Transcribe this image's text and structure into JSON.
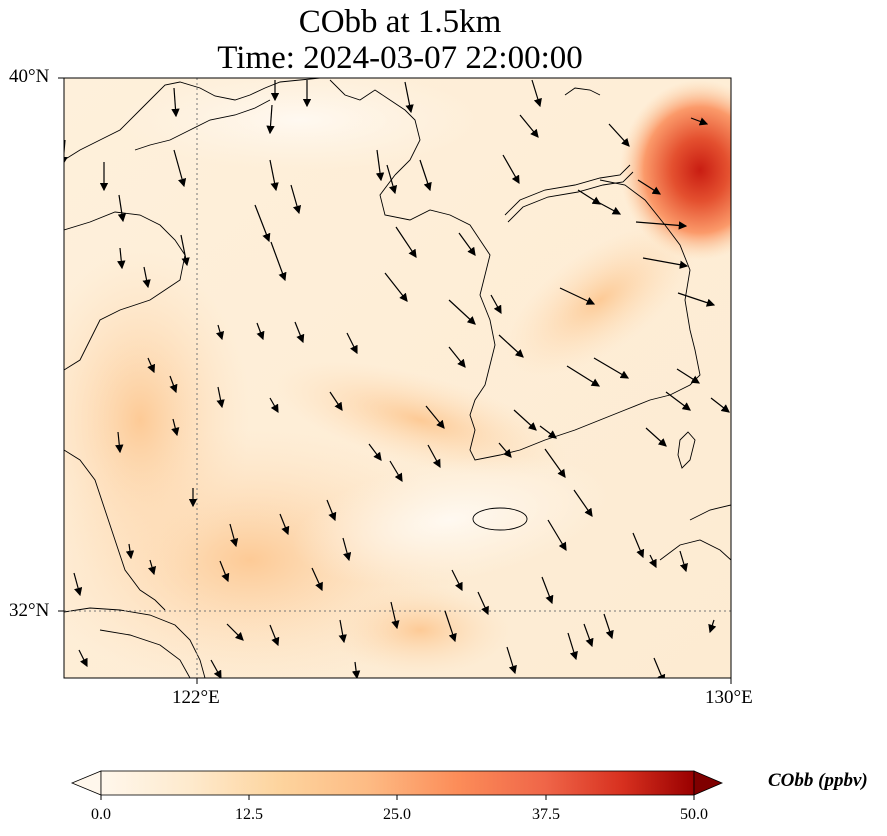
{
  "title": {
    "line1": "CObb at 1.5km",
    "line2": "Time: 2024-03-07 22:00:00"
  },
  "axes": {
    "lat_labels": [
      "40°N",
      "32°N"
    ],
    "lon_labels": [
      "122°E",
      "130°E"
    ],
    "lat_range": [
      31,
      40
    ],
    "lon_range": [
      120,
      130
    ],
    "gridlines": {
      "lat": 32,
      "lon": 122,
      "style": "dotted"
    }
  },
  "colorbar": {
    "label": "CObb (ppbv)",
    "ticks": [
      "0.0",
      "12.5",
      "25.0",
      "37.5",
      "50.0"
    ],
    "min": 0,
    "max": 50,
    "colormap": "OrRd",
    "extend": "both"
  },
  "colors": {
    "low": "#fff7ec",
    "mid": "#fdbb84",
    "high": "#7f0000"
  }
}
